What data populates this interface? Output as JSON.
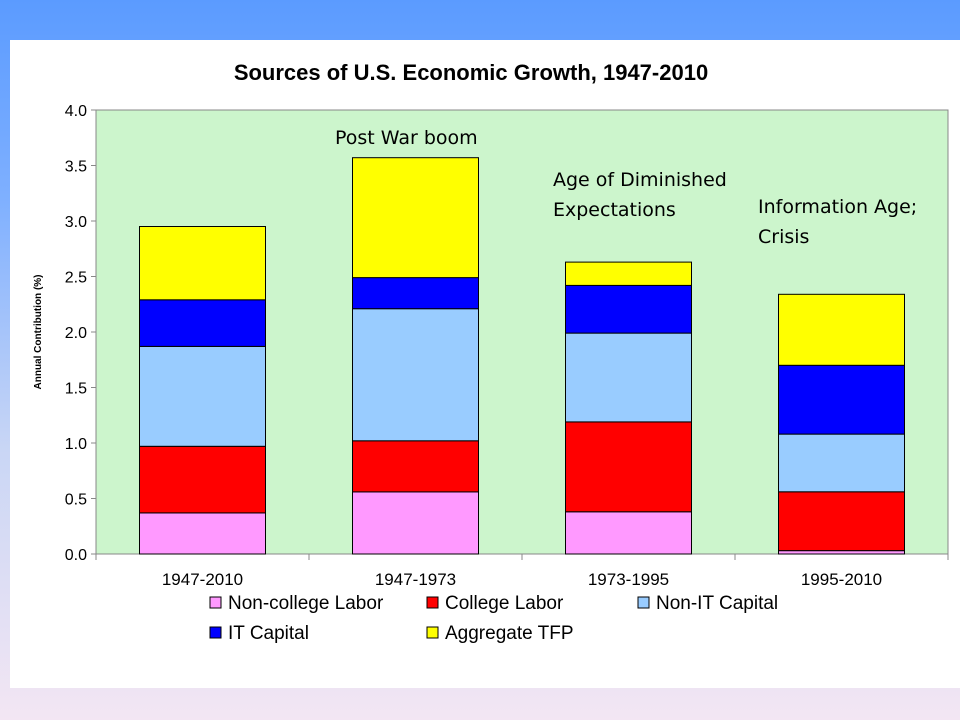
{
  "chart_data": {
    "type": "bar",
    "stacked": true,
    "title": "Sources of U.S. Economic Growth, 1947-2010",
    "xlabel": "",
    "ylabel": "Annual Contribution (%)",
    "ylim": [
      0,
      4.0
    ],
    "ytick_step": 0.5,
    "grid": false,
    "plot_background": "#ccf5cc",
    "categories": [
      "1947-2010",
      "1947-1973",
      "1973-1995",
      "1995-2010"
    ],
    "series": [
      {
        "name": "Non-college Labor",
        "color": "#ff99ff",
        "values": [
          0.37,
          0.56,
          0.38,
          0.03
        ]
      },
      {
        "name": "College Labor",
        "color": "#ff0000",
        "values": [
          0.6,
          0.46,
          0.81,
          0.53
        ]
      },
      {
        "name": "Non-IT Capital",
        "color": "#99ccff",
        "values": [
          0.9,
          1.19,
          0.8,
          0.52
        ]
      },
      {
        "name": "IT Capital",
        "color": "#0000ff",
        "values": [
          0.42,
          0.28,
          0.43,
          0.62
        ]
      },
      {
        "name": "Aggregate TFP",
        "color": "#ffff00",
        "values": [
          0.66,
          1.08,
          0.21,
          0.64
        ]
      }
    ],
    "annotations": [
      {
        "lines": [
          "Post War boom"
        ],
        "category": "1947-1973"
      },
      {
        "lines": [
          "Age of Diminished",
          "Expectations"
        ],
        "category": "1973-1995"
      },
      {
        "lines": [
          "Information Age;",
          "Crisis"
        ],
        "category": "1995-2010"
      }
    ],
    "legend_position": "bottom"
  }
}
